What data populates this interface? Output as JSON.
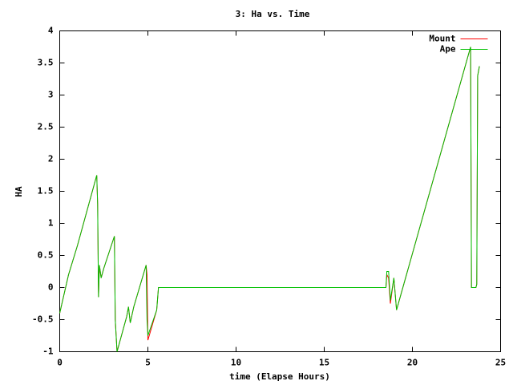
{
  "chart_data": {
    "type": "line",
    "title": "3: Ha vs. Time",
    "x_label": "time (Elapse Hours)",
    "y_label": "HA",
    "x": [
      0,
      0.5,
      1,
      1.5,
      2.1,
      2.15,
      2.2,
      2.25,
      2.35,
      2.5,
      3.1,
      3.15,
      3.25,
      3.8,
      3.9,
      4.0,
      4.2,
      4.9,
      4.95,
      5.0,
      5.5,
      5.6,
      18.5,
      18.55,
      18.65,
      18.75,
      18.95,
      19.1,
      23.3,
      23.35,
      23.6,
      23.65,
      23.7,
      23.8
    ],
    "series": [
      {
        "name": "Mount",
        "color": "#ff0000",
        "values": [
          -0.4,
          0.2,
          0.65,
          1.15,
          1.75,
          1.3,
          -0.15,
          0.35,
          0.15,
          0.3,
          0.8,
          -0.5,
          -1.0,
          -0.45,
          -0.3,
          -0.55,
          -0.3,
          0.35,
          0.2,
          -0.82,
          -0.35,
          0,
          0,
          0.2,
          0.15,
          -0.25,
          0.15,
          -0.35,
          3.75,
          0,
          0,
          0.05,
          3.3,
          3.45
        ]
      },
      {
        "name": "Ape",
        "color": "#00c000",
        "values": [
          -0.4,
          0.2,
          0.65,
          1.15,
          1.75,
          1.3,
          -0.15,
          0.35,
          0.15,
          0.3,
          0.8,
          -0.5,
          -1.0,
          -0.45,
          -0.3,
          -0.55,
          -0.3,
          0.35,
          -0.5,
          -0.75,
          -0.35,
          0,
          0,
          0.25,
          0.25,
          -0.2,
          0.15,
          -0.35,
          3.75,
          0,
          0,
          0.05,
          3.3,
          3.45
        ]
      }
    ],
    "xlim": [
      0,
      25
    ],
    "ylim": [
      -1,
      4
    ],
    "xticks": [
      0,
      5,
      10,
      15,
      20,
      25
    ],
    "yticks": [
      -1,
      -0.5,
      0,
      0.5,
      1,
      1.5,
      2,
      2.5,
      3,
      3.5,
      4
    ],
    "legend": "upper-right"
  }
}
